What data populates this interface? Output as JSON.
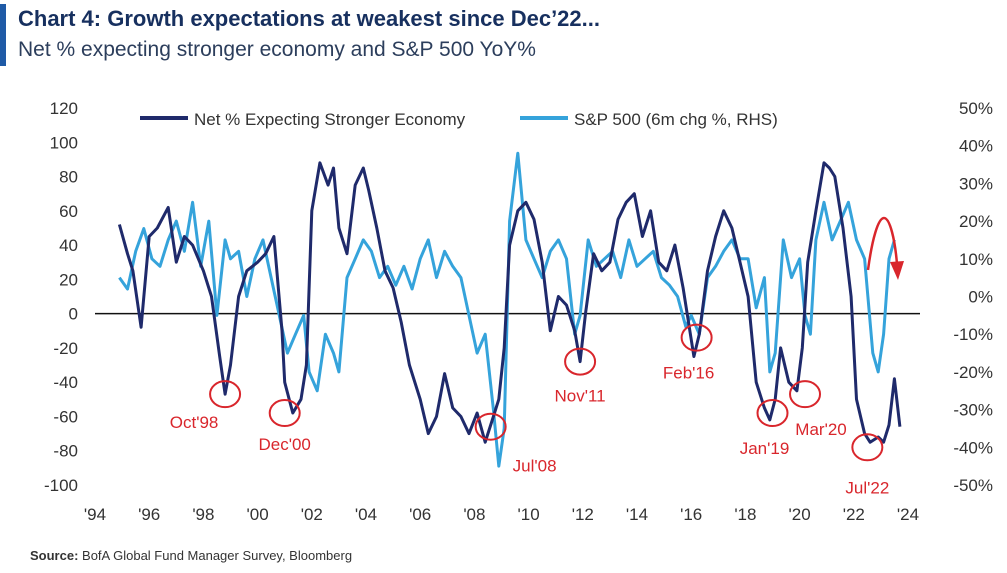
{
  "title": "Chart 4: Growth expectations at weakest since Dec’22...",
  "subtitle": "Net % expecting stronger economy and S&P 500 YoY%",
  "source_label": "Source:",
  "source_text": "BofA Global Fund Manager Survey, Bloomberg",
  "colors": {
    "net": "#1f2a6b",
    "spx": "#35a3db",
    "annot": "#d9262c",
    "title_bar": "#1f5aa6"
  },
  "chart_data": {
    "type": "line",
    "title": "Chart 4: Growth expectations at weakest since Dec’22...",
    "subtitle": "Net % expecting stronger economy and S&P 500 YoY%",
    "legend_position": "top",
    "grid": false,
    "x_axis": {
      "range": [
        1994,
        2024
      ],
      "tick_values": [
        1994,
        1996,
        1998,
        2000,
        2002,
        2004,
        2006,
        2008,
        2010,
        2012,
        2014,
        2016,
        2018,
        2020,
        2022,
        2024
      ],
      "tick_labels": [
        "'94",
        "'96",
        "'98",
        "'00",
        "'02",
        "'04",
        "'06",
        "'08",
        "'10",
        "'12",
        "'14",
        "'16",
        "'18",
        "'20",
        "'22",
        "'24"
      ]
    },
    "y_axis_left": {
      "range": [
        -100,
        120
      ],
      "tick_values": [
        120,
        100,
        80,
        60,
        40,
        20,
        0,
        -20,
        -40,
        -60,
        -80,
        -100
      ],
      "tick_labels": [
        "120",
        "100",
        "80",
        "60",
        "40",
        "20",
        "0",
        "-20",
        "-40",
        "-60",
        "-80",
        "-100"
      ]
    },
    "y_axis_right": {
      "range": [
        -50,
        50
      ],
      "tick_values": [
        50,
        40,
        30,
        20,
        10,
        0,
        -10,
        -20,
        -30,
        -40,
        -50
      ],
      "tick_labels": [
        "50%",
        "40%",
        "30%",
        "20%",
        "10%",
        "0%",
        "-10%",
        "-20%",
        "-30%",
        "-40%",
        "-50%"
      ]
    },
    "series": [
      {
        "name": "Net % Expecting Stronger Economy",
        "axis": "left",
        "x": [
          1994.9,
          1995.2,
          1995.4,
          1995.7,
          1996.0,
          1996.3,
          1996.7,
          1997.0,
          1997.3,
          1997.6,
          1998.0,
          1998.3,
          1998.6,
          1998.8,
          1999.0,
          1999.3,
          1999.6,
          2000.0,
          2000.3,
          2000.6,
          2000.9,
          2001.0,
          2001.3,
          2001.6,
          2001.8,
          2002.0,
          2002.3,
          2002.6,
          2002.8,
          2003.0,
          2003.3,
          2003.6,
          2003.9,
          2004.1,
          2004.4,
          2004.7,
          2005.0,
          2005.3,
          2005.6,
          2006.0,
          2006.3,
          2006.6,
          2006.9,
          2007.2,
          2007.5,
          2007.8,
          2008.1,
          2008.4,
          2008.7,
          2008.9,
          2009.1,
          2009.3,
          2009.6,
          2009.9,
          2010.2,
          2010.5,
          2010.8,
          2011.1,
          2011.4,
          2011.7,
          2011.9,
          2012.1,
          2012.4,
          2012.7,
          2013.0,
          2013.3,
          2013.6,
          2013.9,
          2014.2,
          2014.5,
          2014.8,
          2015.1,
          2015.4,
          2015.7,
          2015.9,
          2016.1,
          2016.3,
          2016.6,
          2016.9,
          2017.2,
          2017.5,
          2017.8,
          2018.1,
          2018.4,
          2018.7,
          2018.9,
          2019.1,
          2019.3,
          2019.6,
          2019.9,
          2020.1,
          2020.3,
          2020.6,
          2020.9,
          2021.1,
          2021.3,
          2021.6,
          2021.9,
          2022.1,
          2022.4,
          2022.6,
          2022.9,
          2023.1,
          2023.3,
          2023.5,
          2023.7
        ],
        "y": [
          52,
          35,
          25,
          -8,
          45,
          50,
          62,
          30,
          45,
          40,
          25,
          10,
          -25,
          -47,
          -30,
          10,
          25,
          30,
          35,
          45,
          -10,
          -40,
          -58,
          -50,
          -30,
          60,
          88,
          75,
          85,
          50,
          35,
          75,
          85,
          72,
          50,
          25,
          15,
          -5,
          -30,
          -50,
          -70,
          -60,
          -35,
          -55,
          -60,
          -70,
          -58,
          -75,
          -60,
          -50,
          -20,
          40,
          60,
          65,
          55,
          30,
          -10,
          10,
          5,
          -10,
          -28,
          0,
          35,
          25,
          30,
          55,
          65,
          70,
          45,
          60,
          30,
          25,
          40,
          15,
          -5,
          -25,
          -12,
          25,
          45,
          60,
          50,
          30,
          10,
          -40,
          -55,
          -62,
          -50,
          -20,
          -40,
          -45,
          -20,
          30,
          60,
          88,
          85,
          80,
          50,
          10,
          -50,
          -70,
          -75,
          -72,
          -75,
          -65,
          -38,
          -66
        ]
      },
      {
        "name": "S&P 500 (6m chg %, RHS)",
        "axis": "right",
        "x": [
          1994.9,
          1995.2,
          1995.5,
          1995.8,
          1996.1,
          1996.4,
          1996.7,
          1997.0,
          1997.3,
          1997.6,
          1997.9,
          1998.2,
          1998.5,
          1998.8,
          1999.0,
          1999.3,
          1999.6,
          1999.9,
          2000.2,
          2000.5,
          2000.8,
          2001.1,
          2001.4,
          2001.7,
          2001.9,
          2002.2,
          2002.5,
          2002.8,
          2003.0,
          2003.3,
          2003.6,
          2003.9,
          2004.2,
          2004.5,
          2004.8,
          2005.1,
          2005.4,
          2005.7,
          2006.0,
          2006.3,
          2006.6,
          2006.9,
          2007.2,
          2007.5,
          2007.8,
          2008.1,
          2008.4,
          2008.7,
          2008.9,
          2009.1,
          2009.3,
          2009.6,
          2009.9,
          2010.2,
          2010.5,
          2010.8,
          2011.1,
          2011.4,
          2011.7,
          2011.9,
          2012.2,
          2012.5,
          2012.8,
          2013.1,
          2013.4,
          2013.7,
          2014.0,
          2014.3,
          2014.6,
          2014.9,
          2015.2,
          2015.5,
          2015.8,
          2016.0,
          2016.3,
          2016.6,
          2016.9,
          2017.2,
          2017.5,
          2017.8,
          2018.1,
          2018.4,
          2018.7,
          2018.9,
          2019.1,
          2019.4,
          2019.7,
          2020.0,
          2020.2,
          2020.4,
          2020.6,
          2020.9,
          2021.2,
          2021.5,
          2021.8,
          2022.1,
          2022.4,
          2022.7,
          2022.9,
          2023.1,
          2023.3,
          2023.5
        ],
        "y": [
          5,
          2,
          12,
          18,
          10,
          8,
          15,
          20,
          12,
          25,
          8,
          20,
          -5,
          15,
          10,
          12,
          0,
          10,
          15,
          5,
          -5,
          -15,
          -10,
          -5,
          -20,
          -25,
          -10,
          -15,
          -20,
          5,
          10,
          15,
          12,
          5,
          8,
          3,
          8,
          2,
          10,
          15,
          5,
          12,
          8,
          5,
          -5,
          -15,
          -10,
          -30,
          -45,
          -35,
          20,
          38,
          15,
          10,
          5,
          12,
          15,
          10,
          -10,
          -5,
          15,
          8,
          10,
          12,
          5,
          15,
          8,
          10,
          12,
          5,
          3,
          0,
          -8,
          -5,
          -10,
          5,
          8,
          12,
          15,
          10,
          10,
          -3,
          5,
          -20,
          -15,
          15,
          5,
          10,
          -5,
          -10,
          15,
          25,
          15,
          20,
          25,
          15,
          10,
          -15,
          -20,
          -10,
          10,
          15
        ]
      }
    ],
    "annotations": [
      {
        "label": "Oct'98",
        "x": 1998.8,
        "y": -47
      },
      {
        "label": "Dec'00",
        "x": 2001.0,
        "y": -58
      },
      {
        "label": "Jul'08",
        "x": 2008.6,
        "y": -66
      },
      {
        "label": "Nov'11",
        "x": 2011.9,
        "y": -28
      },
      {
        "label": "Feb'16",
        "x": 2016.2,
        "y": -14
      },
      {
        "label": "Jan'19",
        "x": 2019.0,
        "y": -58
      },
      {
        "label": "Mar'20",
        "x": 2020.2,
        "y": -47
      },
      {
        "label": "Jul'22",
        "x": 2022.5,
        "y": -78
      }
    ]
  }
}
